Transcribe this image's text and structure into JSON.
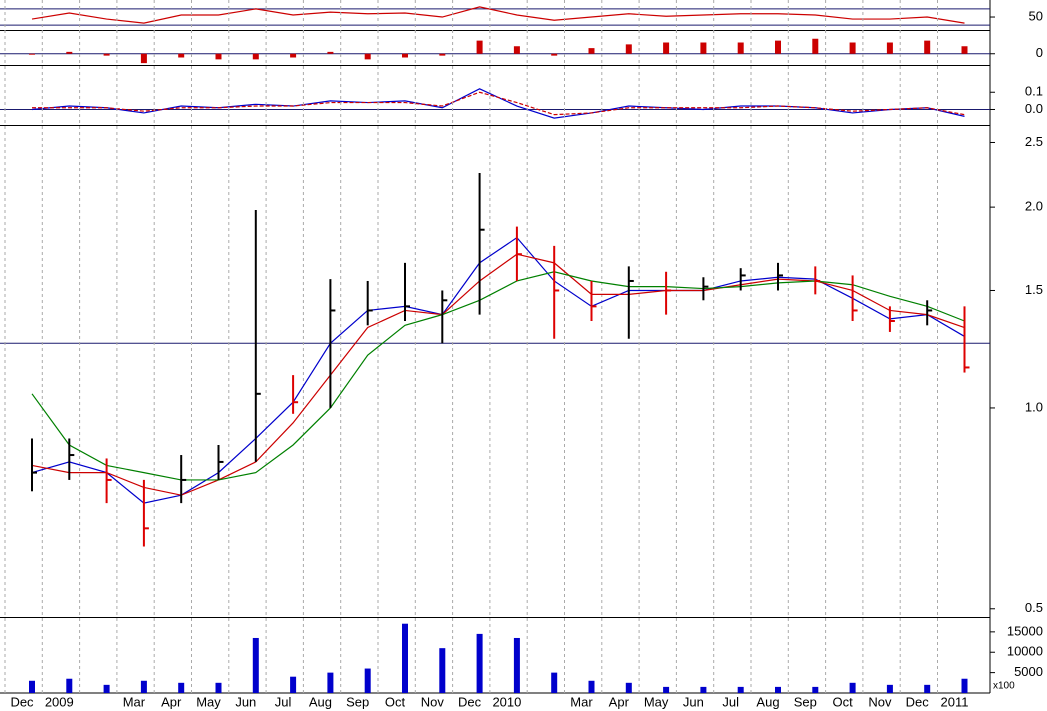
{
  "chart_data": [
    {
      "type": "line",
      "ylim": [
        18,
        92
      ],
      "yticks": [
        50
      ],
      "reference_lines": [
        30,
        70
      ],
      "reference_color": "#1a1a6e",
      "series": [
        {
          "color": "#cc0000",
          "values": [
            45,
            60,
            45,
            35,
            55,
            55,
            70,
            55,
            62,
            58,
            60,
            50,
            75,
            55,
            42,
            50,
            58,
            52,
            55,
            58,
            58,
            55,
            45,
            45,
            50,
            35
          ]
        }
      ]
    },
    {
      "type": "bar",
      "ylim": [
        -0.6,
        1.0
      ],
      "yticks": [
        0
      ],
      "reference_lines": [
        0
      ],
      "reference_color": "#1a1a6e",
      "color": "#cc0000",
      "values": [
        -0.05,
        0.1,
        -0.1,
        -0.5,
        -0.2,
        -0.3,
        -0.3,
        -0.2,
        0.1,
        -0.3,
        -0.2,
        -0.1,
        0.7,
        0.4,
        -0.1,
        0.3,
        0.5,
        0.6,
        0.6,
        0.6,
        0.7,
        0.8,
        0.6,
        0.6,
        0.7,
        0.4
      ]
    },
    {
      "type": "line",
      "ylim": [
        -0.09,
        0.2
      ],
      "yticks": [
        {
          "value": 0,
          "label": "0.0"
        },
        0.1
      ],
      "reference_lines": [
        0
      ],
      "reference_color": "#1a1a6e",
      "series": [
        {
          "color": "#0000cc",
          "values": [
            0,
            0.02,
            0.01,
            -0.02,
            0.02,
            0.01,
            0.03,
            0.02,
            0.05,
            0.04,
            0.05,
            0.01,
            0.12,
            0.02,
            -0.05,
            -0.02,
            0.02,
            0.01,
            0,
            0.02,
            0.02,
            0.01,
            -0.02,
            0,
            0.01,
            -0.04
          ]
        },
        {
          "color": "#cc0000",
          "dashed": true,
          "values": [
            0.01,
            0.01,
            0.01,
            -0.01,
            0.01,
            0.01,
            0.02,
            0.02,
            0.04,
            0.04,
            0.04,
            0.02,
            0.1,
            0.04,
            -0.03,
            -0.02,
            0.01,
            0.01,
            0.01,
            0.01,
            0.02,
            0.01,
            -0.01,
            0,
            0.01,
            -0.03
          ]
        }
      ]
    },
    {
      "type": "ohlc",
      "log_scale": true,
      "ylim": [
        0.486,
        2.61
      ],
      "yticks": [
        0.5,
        {
          "value": 1.0,
          "label": "1.0"
        },
        1.5,
        {
          "value": 2.0,
          "label": "2.0"
        },
        2.5
      ],
      "grid": true,
      "up_color": "#000000",
      "down_color": "#dd0000",
      "reference_lines": [
        1.25
      ],
      "reference_color": "#1a1a6e",
      "categories": [
        "Dec",
        "2009",
        null,
        "Mar",
        "Apr",
        "May",
        "Jun",
        "Jul",
        "Aug",
        "Sep",
        "Oct",
        "Nov",
        "Dec",
        "2010",
        null,
        "Mar",
        "Apr",
        "May",
        "Jun",
        "Jul",
        "Aug",
        "Sep",
        "Oct",
        "Nov",
        "Dec",
        "2011"
      ],
      "high": [
        0.9,
        0.9,
        0.84,
        0.78,
        0.85,
        0.88,
        1.98,
        1.12,
        1.56,
        1.55,
        1.65,
        1.5,
        2.25,
        1.87,
        1.75,
        1.55,
        1.63,
        1.6,
        1.57,
        1.62,
        1.65,
        1.63,
        1.58,
        1.42,
        1.45,
        1.42
      ],
      "low": [
        0.75,
        0.78,
        0.72,
        0.62,
        0.72,
        0.78,
        0.83,
        0.98,
        1.0,
        1.33,
        1.35,
        1.25,
        1.38,
        1.55,
        1.27,
        1.35,
        1.27,
        1.38,
        1.45,
        1.5,
        1.5,
        1.48,
        1.35,
        1.3,
        1.33,
        1.13
      ],
      "close": [
        0.8,
        0.85,
        0.78,
        0.66,
        0.78,
        0.83,
        1.05,
        1.02,
        1.4,
        1.4,
        1.42,
        1.45,
        1.85,
        1.7,
        1.5,
        1.42,
        1.55,
        1.5,
        1.52,
        1.58,
        1.58,
        1.55,
        1.4,
        1.35,
        1.4,
        1.15
      ],
      "series": [
        {
          "color": "#0000cc",
          "values": [
            0.8,
            0.83,
            0.8,
            0.72,
            0.74,
            0.8,
            0.9,
            1.02,
            1.25,
            1.4,
            1.42,
            1.38,
            1.65,
            1.8,
            1.55,
            1.42,
            1.5,
            1.5,
            1.5,
            1.55,
            1.57,
            1.56,
            1.46,
            1.36,
            1.38,
            1.28
          ]
        },
        {
          "color": "#cc0000",
          "values": [
            0.82,
            0.8,
            0.8,
            0.76,
            0.74,
            0.78,
            0.83,
            0.95,
            1.12,
            1.32,
            1.4,
            1.38,
            1.55,
            1.7,
            1.65,
            1.48,
            1.48,
            1.5,
            1.5,
            1.53,
            1.56,
            1.55,
            1.5,
            1.4,
            1.38,
            1.32
          ]
        },
        {
          "color": "#008000",
          "values": [
            1.05,
            0.88,
            0.82,
            0.8,
            0.78,
            0.78,
            0.8,
            0.88,
            1.0,
            1.2,
            1.33,
            1.38,
            1.45,
            1.55,
            1.6,
            1.55,
            1.52,
            1.52,
            1.51,
            1.52,
            1.54,
            1.55,
            1.53,
            1.47,
            1.42,
            1.35
          ]
        }
      ]
    },
    {
      "type": "bar",
      "ylim": [
        0,
        18400
      ],
      "yticks": [
        5000,
        10000,
        15000
      ],
      "color": "#0000cc",
      "unit_label": "x100",
      "values": [
        3000,
        3500,
        2000,
        3000,
        2500,
        2500,
        13500,
        4000,
        5000,
        6000,
        17000,
        11000,
        14500,
        13500,
        5000,
        3000,
        2500,
        1500,
        1500,
        1500,
        1500,
        1500,
        2500,
        2000,
        2000,
        3500
      ]
    }
  ]
}
